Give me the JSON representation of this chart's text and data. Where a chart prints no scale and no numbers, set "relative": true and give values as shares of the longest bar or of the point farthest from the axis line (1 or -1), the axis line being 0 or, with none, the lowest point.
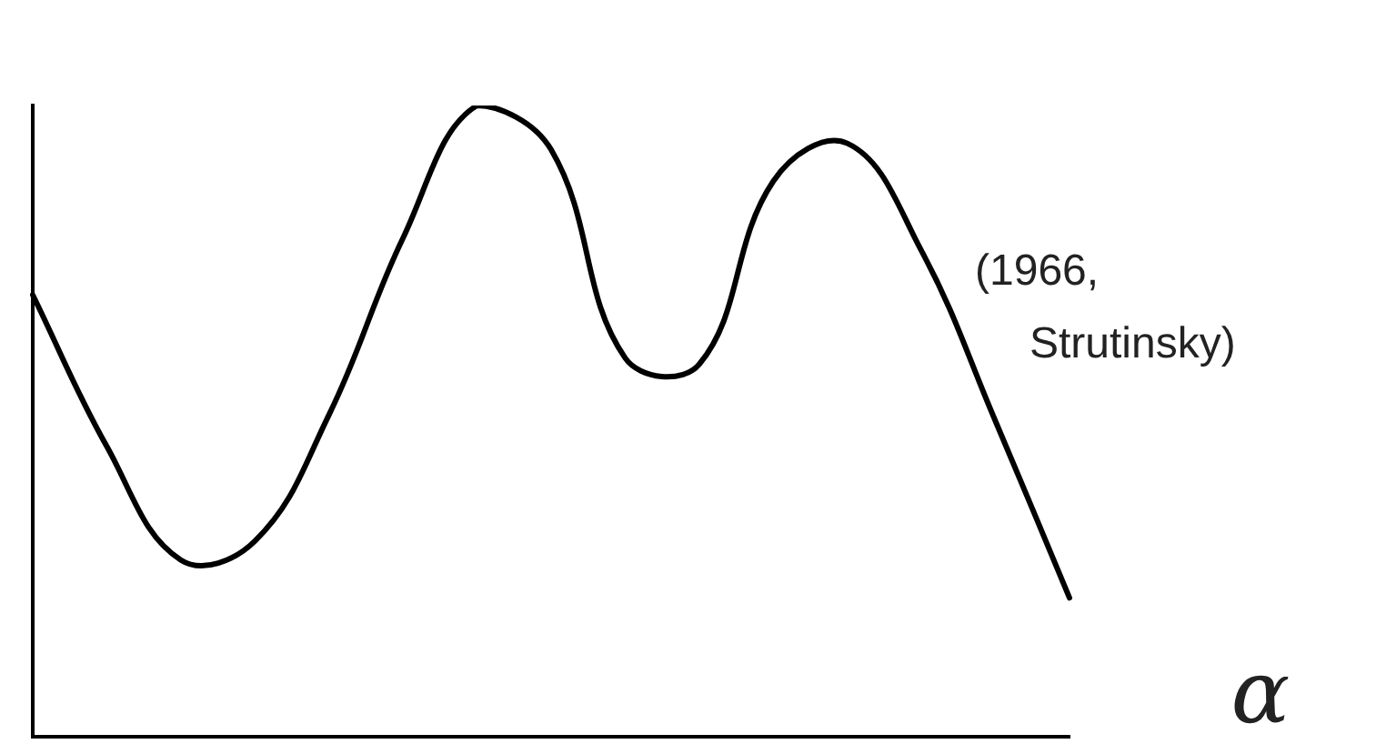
{
  "chart_data": {
    "type": "line",
    "relative": true,
    "xlabel": "α",
    "annotations": [
      "(1966, Strutinsky)"
    ],
    "categories": [
      null,
      null,
      null,
      null,
      null,
      null,
      null,
      null,
      null,
      null,
      null,
      null,
      null,
      null,
      null
    ],
    "series": [
      {
        "color": "#000000",
        "values": [
          0.7,
          0.46,
          0.28,
          0.31,
          0.51,
          0.79,
          1,
          0.93,
          0.6,
          0.59,
          0.88,
          0.94,
          0.77,
          0.5,
          0.22
        ]
      }
    ],
    "legend": false,
    "grid": false,
    "marker": "none",
    "line_style": "solid"
  }
}
